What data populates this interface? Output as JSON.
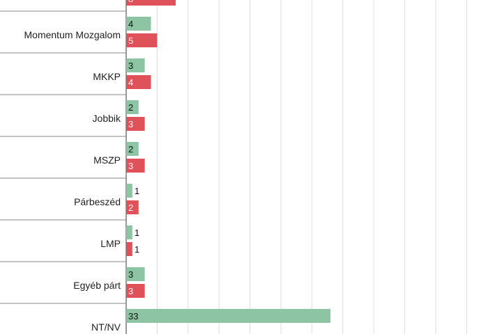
{
  "chart_data": {
    "type": "bar",
    "orientation": "horizontal",
    "categories": [
      "",
      "Momentum Mozgalom",
      "MKKP",
      "Jobbik",
      "MSZP",
      "Párbeszéd",
      "LMP",
      "Egyéb párt",
      "NT/NV"
    ],
    "series": [
      {
        "values": [
          null,
          4,
          3,
          2,
          2,
          1,
          1,
          3,
          33
        ]
      },
      {
        "values": [
          8,
          5,
          4,
          3,
          3,
          2,
          1,
          3,
          null
        ]
      }
    ],
    "colors": [
      "#8dc5a4",
      "#e05259"
    ],
    "xlim": [
      0,
      55
    ],
    "grid": true,
    "legend": "none"
  }
}
